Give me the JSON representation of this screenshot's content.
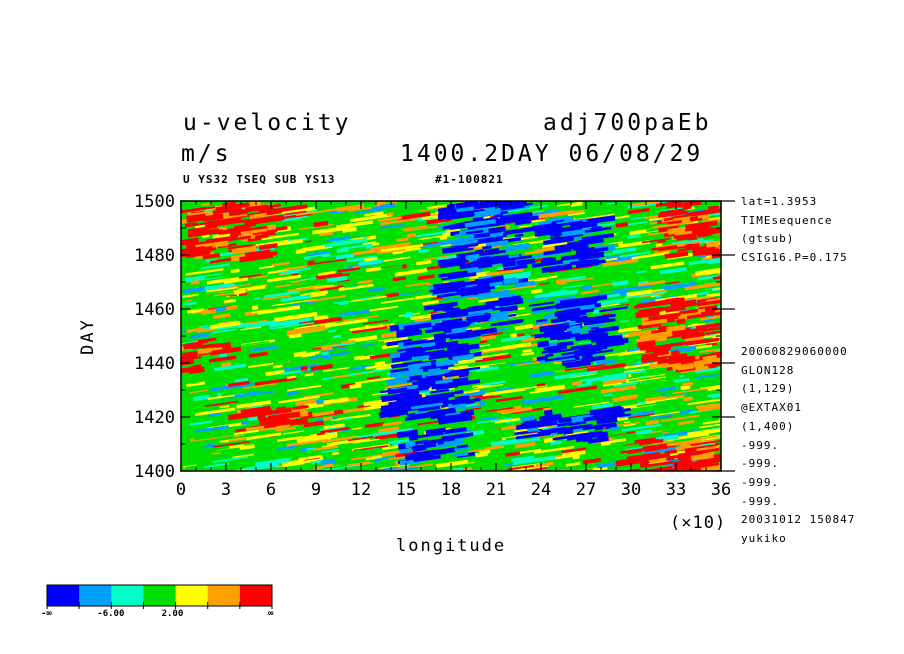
{
  "header": {
    "variable": "u-velocity",
    "experiment": "adj700paEb",
    "unit": "m/s",
    "time_stamp": "1400.2DAY 06/08/29",
    "subtitle": "U YS32 TSEQ SUB YS13",
    "run_id": "#1-100821"
  },
  "side_info": {
    "top": [
      "lat=1.3953",
      "TIMEsequence",
      "(gtsub)",
      "CSIG16.P=0.175"
    ],
    "middle": [
      "20060829060000",
      "GLON128",
      "(1,129)",
      "@EXTAX01",
      "(1,400)",
      "-999.",
      "-999.",
      "-999.",
      "-999.",
      "20031012 150847",
      "yukiko"
    ]
  },
  "colorbar": {
    "colors": [
      "#0000ff",
      "#00a0ff",
      "#00ffc8",
      "#00e000",
      "#ffff00",
      "#ffa000",
      "#ff0000"
    ],
    "labels": [
      "-∞",
      "-6.00",
      "2.00",
      "∞"
    ]
  },
  "chart_data": {
    "type": "heatmap",
    "title": "u-velocity",
    "xlabel": "longitude",
    "ylabel": "DAY",
    "x_ticks": [
      "0",
      "3",
      "6",
      "9",
      "12",
      "15",
      "18",
      "21",
      "24",
      "27",
      "30",
      "33",
      "36"
    ],
    "x_multiplier": "(×10)",
    "y_ticks": [
      "1400",
      "1420",
      "1440",
      "1460",
      "1480",
      "1500"
    ],
    "xlim": [
      0,
      360
    ],
    "ylim": [
      1400,
      1500
    ],
    "color_levels": [
      -6.0,
      2.0
    ],
    "regions": [
      {
        "lon": [
          150,
          190
        ],
        "day": [
          1404,
          1416
        ],
        "level": "blue"
      },
      {
        "lon": [
          140,
          190
        ],
        "day": [
          1420,
          1455
        ],
        "level": "blue"
      },
      {
        "lon": [
          170,
          220
        ],
        "day": [
          1450,
          1470
        ],
        "level": "blue"
      },
      {
        "lon": [
          180,
          230
        ],
        "day": [
          1470,
          1500
        ],
        "level": "blue"
      },
      {
        "lon": [
          230,
          290
        ],
        "day": [
          1412,
          1424
        ],
        "level": "blue"
      },
      {
        "lon": [
          240,
          290
        ],
        "day": [
          1440,
          1465
        ],
        "level": "blue"
      },
      {
        "lon": [
          240,
          280
        ],
        "day": [
          1476,
          1494
        ],
        "level": "blue"
      },
      {
        "lon": [
          40,
          90
        ],
        "day": [
          1416,
          1424
        ],
        "level": "red"
      },
      {
        "lon": [
          0,
          30
        ],
        "day": [
          1438,
          1450
        ],
        "level": "red"
      },
      {
        "lon": [
          310,
          360
        ],
        "day": [
          1438,
          1464
        ],
        "level": "red"
      },
      {
        "lon": [
          300,
          360
        ],
        "day": [
          1400,
          1412
        ],
        "level": "red"
      },
      {
        "lon": [
          0,
          60
        ],
        "day": [
          1480,
          1500
        ],
        "level": "red"
      },
      {
        "lon": [
          320,
          360
        ],
        "day": [
          1480,
          1500
        ],
        "level": "red"
      }
    ]
  }
}
